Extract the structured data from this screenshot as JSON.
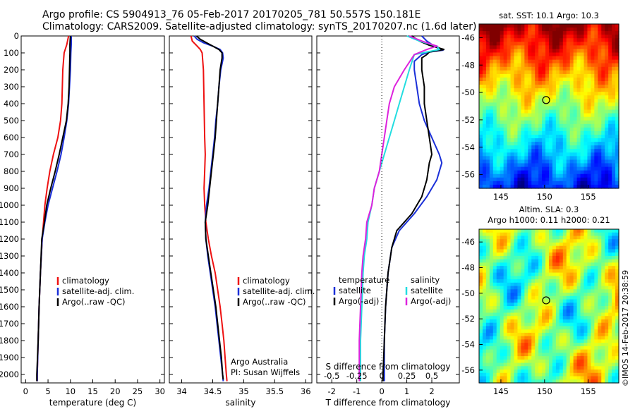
{
  "title": {
    "line1": "Argo profile: CS 5904913_76 05-Feb-2017 20170205_781 50.557S 150.181E",
    "line2": "Climatology: CARS2009. Satellite-adjusted climatology: synTS_20170207.nc (1.6d later)"
  },
  "credit": {
    "org": "Argo Australia",
    "pi": "PI: Susan Wijffels",
    "stamp": "©IMOS 14-Feb-2017 20:38:59"
  },
  "colors": {
    "climatology": "#ee1111",
    "satellite": "#1a2fd8",
    "argo": "#000000",
    "sal_satellite": "#22dde0",
    "sal_argo": "#dd22dd"
  },
  "chart_data": [
    {
      "id": "temperature",
      "type": "line",
      "xlabel": "temperature (deg C)",
      "xlim": [
        -1,
        31
      ],
      "ylim": [
        2050,
        0
      ],
      "x_ticks": [
        0,
        5,
        10,
        15,
        20,
        25,
        30
      ],
      "y_ticks": [
        0,
        100,
        200,
        300,
        400,
        500,
        600,
        700,
        800,
        900,
        1000,
        1100,
        1200,
        1300,
        1400,
        1500,
        1600,
        1700,
        1800,
        1900,
        2000
      ],
      "legend": [
        "climatology",
        "satellite-adj. clim.",
        "Argo(..raw -QC)"
      ],
      "series": [
        {
          "name": "climatology",
          "color": "#ee1111",
          "points": [
            [
              9.6,
              0
            ],
            [
              9.2,
              50
            ],
            [
              8.6,
              100
            ],
            [
              8.3,
              200
            ],
            [
              8.1,
              400
            ],
            [
              7.8,
              500
            ],
            [
              7.2,
              600
            ],
            [
              6.2,
              700
            ],
            [
              5.4,
              800
            ],
            [
              4.8,
              900
            ],
            [
              4.3,
              1000
            ],
            [
              3.7,
              1200
            ],
            [
              3.3,
              1400
            ],
            [
              3.0,
              1600
            ],
            [
              2.8,
              1800
            ],
            [
              2.6,
              2000
            ],
            [
              2.6,
              2040
            ]
          ]
        },
        {
          "name": "satellite-adj. clim.",
          "color": "#1a2fd8",
          "points": [
            [
              10.2,
              0
            ],
            [
              10.2,
              50
            ],
            [
              10.1,
              100
            ],
            [
              10.0,
              200
            ],
            [
              9.8,
              300
            ],
            [
              9.6,
              400
            ],
            [
              9.2,
              500
            ],
            [
              8.6,
              600
            ],
            [
              7.9,
              700
            ],
            [
              7.0,
              800
            ],
            [
              6.0,
              900
            ],
            [
              5.0,
              1000
            ],
            [
              4.3,
              1100
            ],
            [
              3.7,
              1200
            ],
            [
              3.3,
              1400
            ],
            [
              3.0,
              1600
            ],
            [
              2.8,
              1800
            ],
            [
              2.6,
              2000
            ],
            [
              2.6,
              2040
            ]
          ]
        },
        {
          "name": "Argo(..raw -QC)",
          "color": "#000000",
          "points": [
            [
              10.0,
              0
            ],
            [
              9.9,
              50
            ],
            [
              9.9,
              100
            ],
            [
              9.8,
              200
            ],
            [
              9.7,
              300
            ],
            [
              9.5,
              400
            ],
            [
              9.1,
              500
            ],
            [
              8.3,
              600
            ],
            [
              7.5,
              700
            ],
            [
              6.6,
              800
            ],
            [
              5.6,
              900
            ],
            [
              4.7,
              1000
            ],
            [
              4.2,
              1100
            ],
            [
              3.6,
              1200
            ],
            [
              3.3,
              1400
            ],
            [
              3.0,
              1600
            ],
            [
              2.8,
              1800
            ],
            [
              2.5,
              2000
            ],
            [
              2.5,
              2040
            ]
          ]
        }
      ]
    },
    {
      "id": "salinity",
      "type": "line",
      "xlabel": "salinity",
      "xlim": [
        33.8,
        36.1
      ],
      "ylim": [
        2050,
        0
      ],
      "x_ticks": [
        34,
        34.5,
        35,
        35.5,
        36
      ],
      "legend": [
        "climatology",
        "satellite-adj. clim.",
        "Argo(..raw -QC)"
      ],
      "series": [
        {
          "name": "climatology",
          "color": "#ee1111",
          "points": [
            [
              34.15,
              0
            ],
            [
              34.17,
              30
            ],
            [
              34.25,
              60
            ],
            [
              34.3,
              80
            ],
            [
              34.33,
              100
            ],
            [
              34.34,
              150
            ],
            [
              34.35,
              200
            ],
            [
              34.36,
              400
            ],
            [
              34.37,
              600
            ],
            [
              34.38,
              700
            ],
            [
              34.37,
              800
            ],
            [
              34.36,
              900
            ],
            [
              34.37,
              1000
            ],
            [
              34.39,
              1100
            ],
            [
              34.43,
              1200
            ],
            [
              34.48,
              1300
            ],
            [
              34.54,
              1400
            ],
            [
              34.58,
              1500
            ],
            [
              34.62,
              1600
            ],
            [
              34.65,
              1700
            ],
            [
              34.68,
              1800
            ],
            [
              34.7,
              1900
            ],
            [
              34.72,
              2000
            ],
            [
              34.73,
              2040
            ]
          ]
        },
        {
          "name": "satellite-adj. clim.",
          "color": "#1a2fd8",
          "points": [
            [
              34.2,
              0
            ],
            [
              34.25,
              20
            ],
            [
              34.35,
              40
            ],
            [
              34.5,
              60
            ],
            [
              34.62,
              80
            ],
            [
              34.66,
              100
            ],
            [
              34.67,
              130
            ],
            [
              34.63,
              200
            ],
            [
              34.6,
              300
            ],
            [
              34.58,
              400
            ],
            [
              34.55,
              500
            ],
            [
              34.53,
              600
            ],
            [
              34.5,
              700
            ],
            [
              34.47,
              800
            ],
            [
              34.44,
              900
            ],
            [
              34.4,
              1000
            ],
            [
              34.38,
              1100
            ],
            [
              34.39,
              1200
            ],
            [
              34.42,
              1300
            ],
            [
              34.46,
              1400
            ],
            [
              34.5,
              1500
            ],
            [
              34.54,
              1600
            ],
            [
              34.57,
              1700
            ],
            [
              34.6,
              1800
            ],
            [
              34.63,
              1900
            ],
            [
              34.66,
              2000
            ],
            [
              34.67,
              2040
            ]
          ]
        },
        {
          "name": "Argo(..raw -QC)",
          "color": "#000000",
          "points": [
            [
              34.24,
              0
            ],
            [
              34.3,
              20
            ],
            [
              34.4,
              40
            ],
            [
              34.5,
              60
            ],
            [
              34.6,
              80
            ],
            [
              34.65,
              100
            ],
            [
              34.65,
              130
            ],
            [
              34.62,
              200
            ],
            [
              34.6,
              300
            ],
            [
              34.58,
              400
            ],
            [
              34.56,
              500
            ],
            [
              34.54,
              600
            ],
            [
              34.51,
              700
            ],
            [
              34.48,
              800
            ],
            [
              34.45,
              900
            ],
            [
              34.42,
              1000
            ],
            [
              34.38,
              1100
            ],
            [
              34.39,
              1200
            ],
            [
              34.43,
              1300
            ],
            [
              34.47,
              1400
            ],
            [
              34.51,
              1500
            ],
            [
              34.55,
              1600
            ],
            [
              34.58,
              1700
            ],
            [
              34.61,
              1800
            ],
            [
              34.64,
              1900
            ],
            [
              34.66,
              2000
            ],
            [
              34.67,
              2030
            ]
          ]
        }
      ]
    },
    {
      "id": "difference",
      "type": "line",
      "xlabel": "T difference from climatology",
      "xlabel_top": "S difference from climatology",
      "xlim": [
        -2.6,
        3.1
      ],
      "ylim": [
        2050,
        0
      ],
      "x_ticks": [
        -2,
        -1,
        0,
        1,
        2
      ],
      "x_ticks_salinity": [
        -0.5,
        -0.25,
        0,
        0.25,
        0.5
      ],
      "legend_headers": [
        "temperature",
        "salinity"
      ],
      "legend": [
        "satellite",
        "Argo(-adj)",
        "satellite",
        "Argo(-adj)"
      ],
      "series": [
        {
          "name": "satellite",
          "group": "temperature",
          "color": "#1a2fd8",
          "points": [
            [
              1.6,
              0
            ],
            [
              1.8,
              30
            ],
            [
              2.1,
              60
            ],
            [
              2.4,
              85
            ],
            [
              1.9,
              95
            ],
            [
              1.6,
              110
            ],
            [
              1.3,
              150
            ],
            [
              1.3,
              200
            ],
            [
              1.4,
              300
            ],
            [
              1.5,
              400
            ],
            [
              1.7,
              500
            ],
            [
              2.0,
              600
            ],
            [
              2.3,
              700
            ],
            [
              2.4,
              750
            ],
            [
              2.2,
              850
            ],
            [
              1.8,
              950
            ],
            [
              1.3,
              1050
            ],
            [
              0.7,
              1150
            ],
            [
              0.4,
              1250
            ],
            [
              0.25,
              1400
            ],
            [
              0.15,
              1600
            ],
            [
              0.1,
              1800
            ],
            [
              0.1,
              2000
            ],
            [
              0.1,
              2040
            ]
          ]
        },
        {
          "name": "Argo(-adj)",
          "group": "temperature",
          "color": "#000000",
          "points": [
            [
              1.2,
              0
            ],
            [
              1.5,
              30
            ],
            [
              1.9,
              55
            ],
            [
              2.5,
              80
            ],
            [
              1.9,
              95
            ],
            [
              1.8,
              110
            ],
            [
              1.6,
              130
            ],
            [
              1.6,
              200
            ],
            [
              1.7,
              300
            ],
            [
              1.7,
              400
            ],
            [
              1.8,
              500
            ],
            [
              1.9,
              600
            ],
            [
              2.0,
              700
            ],
            [
              1.9,
              750
            ],
            [
              1.8,
              850
            ],
            [
              1.6,
              950
            ],
            [
              1.2,
              1050
            ],
            [
              0.6,
              1150
            ],
            [
              0.4,
              1250
            ],
            [
              0.25,
              1400
            ],
            [
              0.15,
              1600
            ],
            [
              0.1,
              1800
            ],
            [
              0.05,
              2000
            ],
            [
              0.05,
              2040
            ]
          ]
        },
        {
          "name": "satellite",
          "group": "salinity",
          "color": "#22dde0",
          "points": [
            [
              1.0,
              0
            ],
            [
              1.5,
              30
            ],
            [
              2.2,
              60
            ],
            [
              2.3,
              80
            ],
            [
              1.3,
              110
            ],
            [
              1.1,
              200
            ],
            [
              0.9,
              300
            ],
            [
              0.7,
              400
            ],
            [
              0.5,
              500
            ],
            [
              0.3,
              600
            ],
            [
              0.1,
              700
            ],
            [
              -0.1,
              800
            ],
            [
              -0.3,
              900
            ],
            [
              -0.4,
              1000
            ],
            [
              -0.55,
              1100
            ],
            [
              -0.6,
              1200
            ],
            [
              -0.7,
              1300
            ],
            [
              -0.75,
              1400
            ],
            [
              -0.8,
              1600
            ],
            [
              -0.85,
              1800
            ],
            [
              -0.85,
              2000
            ],
            [
              -0.85,
              2040
            ]
          ]
        },
        {
          "name": "Argo(-adj)",
          "group": "salinity",
          "color": "#dd22dd",
          "points": [
            [
              1.1,
              0
            ],
            [
              1.6,
              30
            ],
            [
              2.2,
              60
            ],
            [
              1.8,
              80
            ],
            [
              1.3,
              110
            ],
            [
              0.9,
              200
            ],
            [
              0.5,
              300
            ],
            [
              0.3,
              400
            ],
            [
              0.2,
              500
            ],
            [
              0.1,
              600
            ],
            [
              0.0,
              700
            ],
            [
              -0.1,
              800
            ],
            [
              -0.3,
              900
            ],
            [
              -0.4,
              1000
            ],
            [
              -0.6,
              1100
            ],
            [
              -0.65,
              1200
            ],
            [
              -0.75,
              1300
            ],
            [
              -0.8,
              1400
            ],
            [
              -0.85,
              1600
            ],
            [
              -0.9,
              1800
            ],
            [
              -0.9,
              2000
            ],
            [
              -0.9,
              2040
            ]
          ]
        }
      ]
    },
    {
      "id": "sst-map",
      "type": "heatmap",
      "title": "sat. SST: 10.1  Argo: 10.3",
      "xlim": [
        142.5,
        158.5
      ],
      "ylim": [
        -57,
        -45
      ],
      "x_ticks": [
        145,
        150,
        155
      ],
      "y_ticks": [
        -46,
        -48,
        -50,
        -52,
        -54,
        -56
      ],
      "marker": {
        "lon": 150.181,
        "lat": -50.557
      }
    },
    {
      "id": "sla-map",
      "type": "heatmap",
      "title": "Altim. SLA: 0.3",
      "subtitle": "Argo h1000: 0.11  h2000: 0.21",
      "xlim": [
        142.5,
        158.5
      ],
      "ylim": [
        -57,
        -45
      ],
      "x_ticks": [
        145,
        150,
        155
      ],
      "y_ticks": [
        -46,
        -48,
        -50,
        -52,
        -54,
        -56
      ],
      "marker": {
        "lon": 150.181,
        "lat": -50.557
      }
    }
  ]
}
